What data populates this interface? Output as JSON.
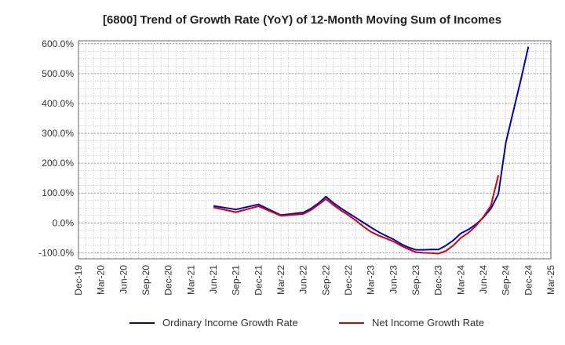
{
  "chart_data": {
    "type": "line",
    "title": "[6800]  Trend of Growth Rate (YoY) of 12-Month Moving Sum of Incomes",
    "xlabel": "",
    "ylabel": "",
    "ylim": [
      -120,
      610
    ],
    "x_ticks": [
      "Dec-19",
      "Mar-20",
      "Jun-20",
      "Sep-20",
      "Dec-20",
      "Mar-21",
      "Jun-21",
      "Sep-21",
      "Dec-21",
      "Mar-22",
      "Jun-22",
      "Sep-22",
      "Dec-22",
      "Mar-23",
      "Jun-23",
      "Sep-23",
      "Dec-23",
      "Mar-24",
      "Jun-24",
      "Sep-24",
      "Dec-24",
      "Mar-25"
    ],
    "y_ticks": [
      -100,
      0,
      100,
      200,
      300,
      400,
      500,
      600
    ],
    "y_tick_labels": [
      "-100.0%",
      "0.0%",
      "100.0%",
      "200.0%",
      "300.0%",
      "400.0%",
      "500.0%",
      "600.0%"
    ],
    "grid": true,
    "legend_position": "bottom",
    "series": [
      {
        "name": "Ordinary Income Growth Rate",
        "color": "#0000cc",
        "points": [
          [
            "Jun-21",
            57
          ],
          [
            "Sep-21",
            45
          ],
          [
            "Dec-21",
            62
          ],
          [
            "Mar-22",
            26
          ],
          [
            "Jun-22",
            35
          ],
          [
            "Jul-22",
            48
          ],
          [
            "Aug-22",
            66
          ],
          [
            "Sep-22",
            88
          ],
          [
            "Oct-22",
            67
          ],
          [
            "Nov-22",
            49
          ],
          [
            "Dec-22",
            33
          ],
          [
            "Jan-23",
            17
          ],
          [
            "Feb-23",
            1
          ],
          [
            "Mar-23",
            -15
          ],
          [
            "Apr-23",
            -30
          ],
          [
            "May-23",
            -43
          ],
          [
            "Jun-23",
            -55
          ],
          [
            "Jul-23",
            -70
          ],
          [
            "Aug-23",
            -82
          ],
          [
            "Sep-23",
            -90
          ],
          [
            "Oct-23",
            -90
          ],
          [
            "Nov-23",
            -89
          ],
          [
            "Dec-23",
            -89
          ],
          [
            "Jan-24",
            -76
          ],
          [
            "Feb-24",
            -58
          ],
          [
            "Mar-24",
            -35
          ],
          [
            "Apr-24",
            -22
          ],
          [
            "May-24",
            -5
          ],
          [
            "Jun-24",
            18
          ],
          [
            "Jul-24",
            48
          ],
          [
            "Aug-24",
            97
          ],
          [
            "Sep-24",
            270
          ],
          [
            "Oct-24",
            375
          ],
          [
            "Nov-24",
            480
          ],
          [
            "Dec-24",
            590
          ]
        ]
      },
      {
        "name": "Net Income Growth Rate",
        "color": "#dd0000",
        "points": [
          [
            "Jun-21",
            52
          ],
          [
            "Sep-21",
            36
          ],
          [
            "Dec-21",
            56
          ],
          [
            "Mar-22",
            24
          ],
          [
            "Jun-22",
            30
          ],
          [
            "Jul-22",
            43
          ],
          [
            "Aug-22",
            61
          ],
          [
            "Sep-22",
            80
          ],
          [
            "Oct-22",
            60
          ],
          [
            "Nov-22",
            42
          ],
          [
            "Dec-22",
            26
          ],
          [
            "Jan-23",
            8
          ],
          [
            "Feb-23",
            -12
          ],
          [
            "Mar-23",
            -30
          ],
          [
            "Apr-23",
            -42
          ],
          [
            "May-23",
            -52
          ],
          [
            "Jun-23",
            -62
          ],
          [
            "Jul-23",
            -76
          ],
          [
            "Aug-23",
            -88
          ],
          [
            "Sep-23",
            -98
          ],
          [
            "Oct-23",
            -100
          ],
          [
            "Nov-23",
            -101
          ],
          [
            "Dec-23",
            -103
          ],
          [
            "Jan-24",
            -94
          ],
          [
            "Feb-24",
            -75
          ],
          [
            "Mar-24",
            -50
          ],
          [
            "Apr-24",
            -33
          ],
          [
            "May-24",
            -10
          ],
          [
            "Jun-24",
            20
          ],
          [
            "Jul-24",
            58
          ],
          [
            "Aug-24",
            160
          ]
        ]
      }
    ]
  }
}
